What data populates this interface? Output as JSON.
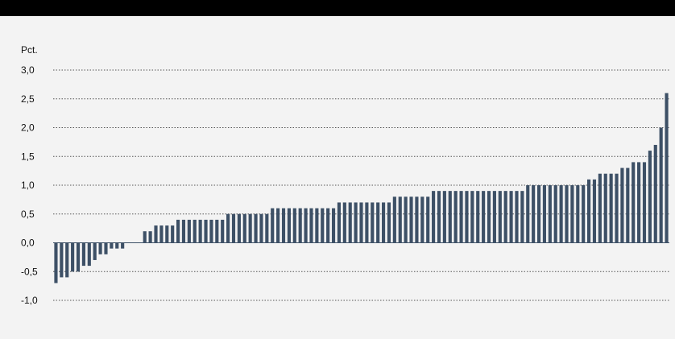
{
  "chart_data": {
    "type": "bar",
    "ylabel": "Pct.",
    "ylim": [
      -1.0,
      3.0
    ],
    "yticks": [
      "3,0",
      "2,5",
      "2,0",
      "1,5",
      "1,0",
      "0,5",
      "0,0",
      "-0,5",
      "-1,0"
    ],
    "ytick_values": [
      3.0,
      2.5,
      2.0,
      1.5,
      1.0,
      0.5,
      0.0,
      -0.5,
      -1.0
    ],
    "grid": "dotted horizontal",
    "bar_color": "#3d5066",
    "values": [
      -0.7,
      -0.6,
      -0.6,
      -0.5,
      -0.5,
      -0.4,
      -0.4,
      -0.3,
      -0.2,
      -0.2,
      -0.1,
      -0.1,
      -0.1,
      0.0,
      0.0,
      0.0,
      0.2,
      0.2,
      0.3,
      0.3,
      0.3,
      0.3,
      0.4,
      0.4,
      0.4,
      0.4,
      0.4,
      0.4,
      0.4,
      0.4,
      0.4,
      0.5,
      0.5,
      0.5,
      0.5,
      0.5,
      0.5,
      0.5,
      0.5,
      0.6,
      0.6,
      0.6,
      0.6,
      0.6,
      0.6,
      0.6,
      0.6,
      0.6,
      0.6,
      0.6,
      0.6,
      0.7,
      0.7,
      0.7,
      0.7,
      0.7,
      0.7,
      0.7,
      0.7,
      0.7,
      0.7,
      0.8,
      0.8,
      0.8,
      0.8,
      0.8,
      0.8,
      0.8,
      0.9,
      0.9,
      0.9,
      0.9,
      0.9,
      0.9,
      0.9,
      0.9,
      0.9,
      0.9,
      0.9,
      0.9,
      0.9,
      0.9,
      0.9,
      0.9,
      0.9,
      1.0,
      1.0,
      1.0,
      1.0,
      1.0,
      1.0,
      1.0,
      1.0,
      1.0,
      1.0,
      1.0,
      1.1,
      1.1,
      1.2,
      1.2,
      1.2,
      1.2,
      1.3,
      1.3,
      1.4,
      1.4,
      1.4,
      1.6,
      1.7,
      2.0,
      2.6
    ]
  }
}
